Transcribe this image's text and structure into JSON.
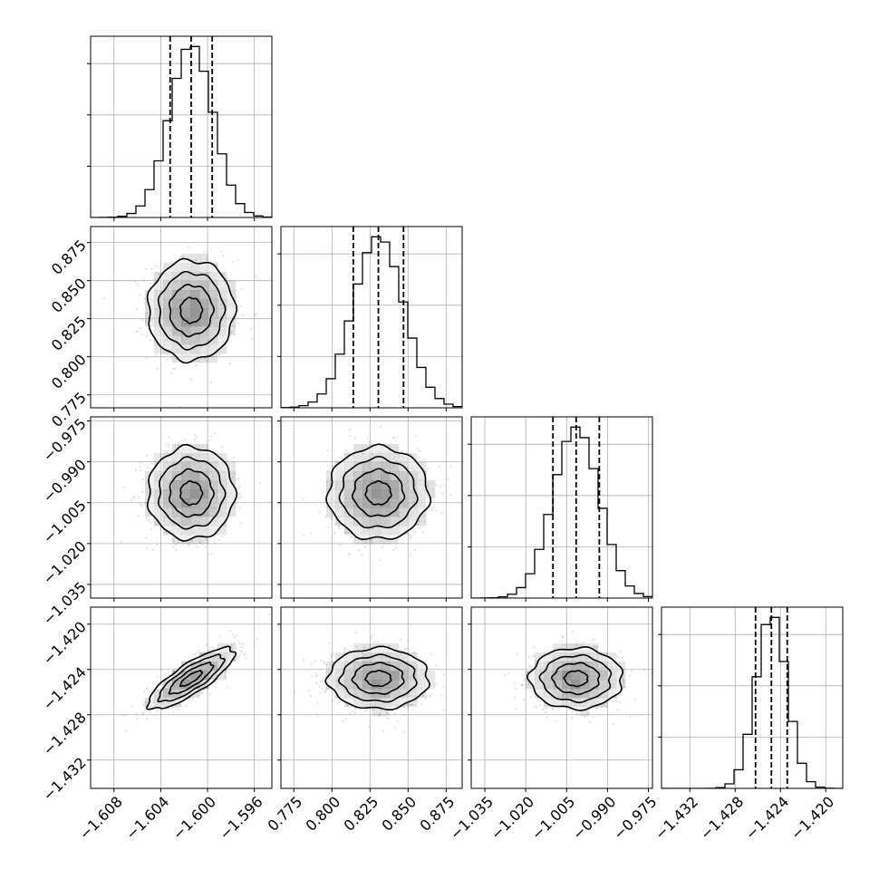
{
  "chart_data": {
    "type": "corner",
    "grid": true,
    "parameters": [
      {
        "index": 0,
        "mean": -1.6014,
        "std": 0.00185,
        "q16": -1.6032,
        "q50": -1.6014,
        "q84": -1.5996,
        "range": [
          -1.61,
          -1.5945
        ],
        "ticks": [
          -1.608,
          -1.604,
          -1.6,
          -1.596
        ],
        "tick_labels": [
          "−1.608",
          "−1.604",
          "−1.600",
          "−1.596"
        ]
      },
      {
        "index": 1,
        "mean": 0.8305,
        "std": 0.0165,
        "q16": 0.814,
        "q50": 0.8305,
        "q84": 0.847,
        "range": [
          0.7665,
          0.8855
        ],
        "ticks": [
          0.775,
          0.8,
          0.825,
          0.85,
          0.875
        ],
        "tick_labels": [
          "0.775",
          "0.800",
          "0.825",
          "0.850",
          "0.875"
        ]
      },
      {
        "index": 2,
        "mean": -1.0015,
        "std": 0.0085,
        "q16": -1.01,
        "q50": -1.0015,
        "q84": -0.993,
        "range": [
          -1.04,
          -0.9735
        ],
        "ticks": [
          -1.035,
          -1.02,
          -1.005,
          -0.99,
          -0.975
        ],
        "tick_labels": [
          "−1.035",
          "−1.020",
          "−1.005",
          "−0.990",
          "−0.975"
        ]
      },
      {
        "index": 3,
        "mean": -1.4248,
        "std": 0.00135,
        "q16": -1.4262,
        "q50": -1.4248,
        "q84": -1.4234,
        "range": [
          -1.4345,
          -1.4185
        ],
        "ticks": [
          -1.432,
          -1.428,
          -1.424,
          -1.42
        ],
        "tick_labels": [
          "−1.432",
          "−1.428",
          "−1.424",
          "−1.420"
        ]
      }
    ],
    "correlations": [
      {
        "pair": [
          0,
          1
        ],
        "rho": 0.0
      },
      {
        "pair": [
          0,
          2
        ],
        "rho": 0.0
      },
      {
        "pair": [
          1,
          2
        ],
        "rho": 0.0
      },
      {
        "pair": [
          0,
          3
        ],
        "rho": 0.82
      },
      {
        "pair": [
          1,
          3
        ],
        "rho": 0.0
      },
      {
        "pair": [
          2,
          3
        ],
        "rho": 0.0
      }
    ],
    "quantile_lines": [
      0.16,
      0.5,
      0.84
    ],
    "contour_levels_sigma": [
      0.5,
      1.0,
      1.5,
      2.0
    ],
    "histogram_bins": 20,
    "colors": {
      "line": "#000000",
      "grid": "#b0b0b0",
      "points": "#000000",
      "density": "#000000"
    }
  }
}
